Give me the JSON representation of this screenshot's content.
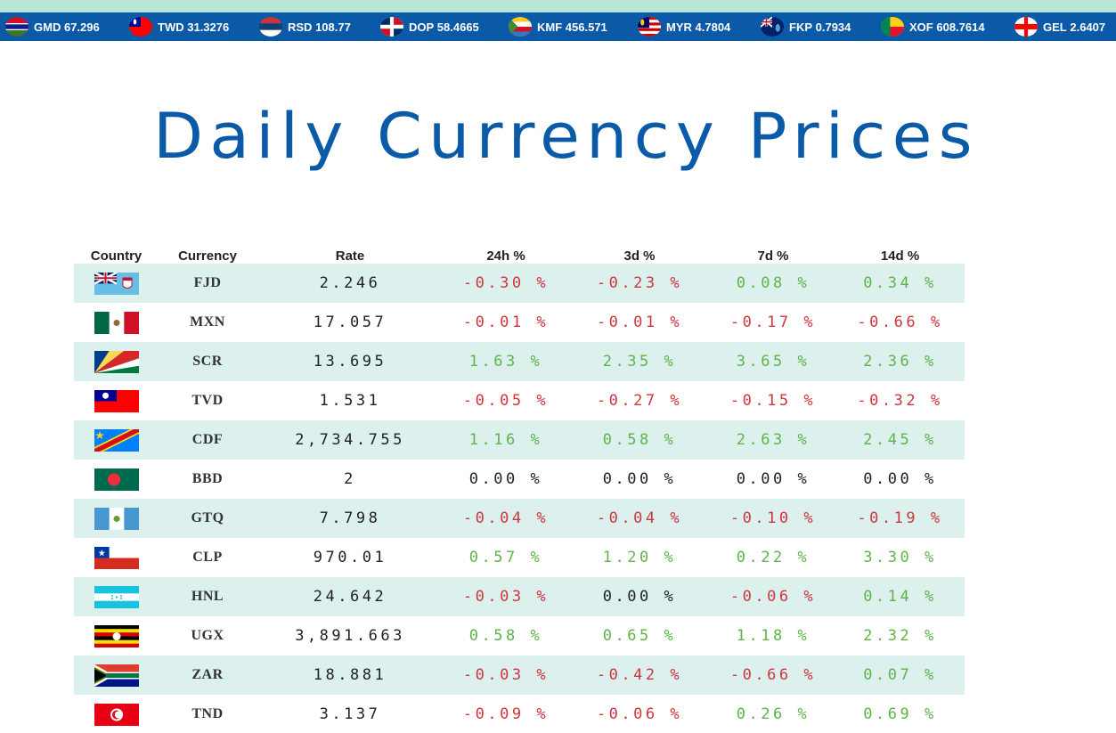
{
  "ticker": [
    {
      "flag": "gm",
      "code": "GMD",
      "value": "67.296"
    },
    {
      "flag": "tw",
      "code": "TWD",
      "value": "31.3276"
    },
    {
      "flag": "rs",
      "code": "RSD",
      "value": "108.77"
    },
    {
      "flag": "do",
      "code": "DOP",
      "value": "58.4665"
    },
    {
      "flag": "km",
      "code": "KMF",
      "value": "456.571"
    },
    {
      "flag": "my",
      "code": "MYR",
      "value": "4.7804"
    },
    {
      "flag": "fk",
      "code": "FKP",
      "value": "0.7934"
    },
    {
      "flag": "bj",
      "code": "XOF",
      "value": "608.7614"
    },
    {
      "flag": "ge",
      "code": "GEL",
      "value": "2.6407"
    }
  ],
  "page_title": "Daily Currency Prices",
  "table": {
    "headers": [
      "Country",
      "Currency",
      "Rate",
      "24h %",
      "3d %",
      "7d %",
      "14d %"
    ],
    "rows": [
      {
        "flag": "fj",
        "currency": "FJD",
        "rate": "2.246",
        "h24": "-0.30 %",
        "d3": "-0.23 %",
        "d7": "0.08 %",
        "d14": "0.34 %"
      },
      {
        "flag": "mx",
        "currency": "MXN",
        "rate": "17.057",
        "h24": "-0.01 %",
        "d3": "-0.01 %",
        "d7": "-0.17 %",
        "d14": "-0.66 %"
      },
      {
        "flag": "sc",
        "currency": "SCR",
        "rate": "13.695",
        "h24": "1.63 %",
        "d3": "2.35 %",
        "d7": "3.65 %",
        "d14": "2.36 %"
      },
      {
        "flag": "tw",
        "currency": "TVD",
        "rate": "1.531",
        "h24": "-0.05 %",
        "d3": "-0.27 %",
        "d7": "-0.15 %",
        "d14": "-0.32 %"
      },
      {
        "flag": "cd",
        "currency": "CDF",
        "rate": "2,734.755",
        "h24": "1.16 %",
        "d3": "0.58 %",
        "d7": "2.63 %",
        "d14": "2.45 %"
      },
      {
        "flag": "bd",
        "currency": "BBD",
        "rate": "2",
        "h24": "0.00 %",
        "d3": "0.00 %",
        "d7": "0.00 %",
        "d14": "0.00 %"
      },
      {
        "flag": "gt",
        "currency": "GTQ",
        "rate": "7.798",
        "h24": "-0.04 %",
        "d3": "-0.04 %",
        "d7": "-0.10 %",
        "d14": "-0.19 %"
      },
      {
        "flag": "cl",
        "currency": "CLP",
        "rate": "970.01",
        "h24": "0.57 %",
        "d3": "1.20 %",
        "d7": "0.22 %",
        "d14": "3.30 %"
      },
      {
        "flag": "hn",
        "currency": "HNL",
        "rate": "24.642",
        "h24": "-0.03 %",
        "d3": "0.00 %",
        "d7": "-0.06 %",
        "d14": "0.14 %"
      },
      {
        "flag": "ug",
        "currency": "UGX",
        "rate": "3,891.663",
        "h24": "0.58 %",
        "d3": "0.65 %",
        "d7": "1.18 %",
        "d14": "2.32 %"
      },
      {
        "flag": "za",
        "currency": "ZAR",
        "rate": "18.881",
        "h24": "-0.03 %",
        "d3": "-0.42 %",
        "d7": "-0.66 %",
        "d14": "0.07 %"
      },
      {
        "flag": "tn",
        "currency": "TND",
        "rate": "3.137",
        "h24": "-0.09 %",
        "d3": "-0.06 %",
        "d7": "0.26 %",
        "d14": "0.69 %"
      }
    ]
  },
  "colors": {
    "brand_blue": "#0b5aa8",
    "positive": "#5fb34a",
    "negative": "#d0353f",
    "neutral": "#222222",
    "row_stripe": "#dcf1ee",
    "top_strip": "#b8e6d8"
  }
}
